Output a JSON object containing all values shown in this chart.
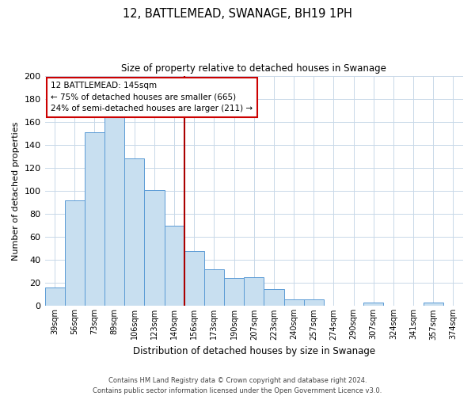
{
  "title": "12, BATTLEMEAD, SWANAGE, BH19 1PH",
  "subtitle": "Size of property relative to detached houses in Swanage",
  "xlabel": "Distribution of detached houses by size in Swanage",
  "ylabel": "Number of detached properties",
  "categories": [
    "39sqm",
    "56sqm",
    "73sqm",
    "89sqm",
    "106sqm",
    "123sqm",
    "140sqm",
    "156sqm",
    "173sqm",
    "190sqm",
    "207sqm",
    "223sqm",
    "240sqm",
    "257sqm",
    "274sqm",
    "290sqm",
    "307sqm",
    "324sqm",
    "341sqm",
    "357sqm",
    "374sqm"
  ],
  "values": [
    16,
    92,
    151,
    165,
    128,
    101,
    70,
    48,
    32,
    24,
    25,
    15,
    6,
    6,
    0,
    0,
    3,
    0,
    0,
    3,
    0
  ],
  "bar_color": "#c8dff0",
  "bar_edge_color": "#5b9bd5",
  "vline_color": "#aa0000",
  "annotation_title": "12 BATTLEMEAD: 145sqm",
  "annotation_line1": "← 75% of detached houses are smaller (665)",
  "annotation_line2": "24% of semi-detached houses are larger (211) →",
  "annotation_box_color": "#ffffff",
  "annotation_box_edge": "#cc0000",
  "ylim": [
    0,
    200
  ],
  "yticks": [
    0,
    20,
    40,
    60,
    80,
    100,
    120,
    140,
    160,
    180,
    200
  ],
  "footer_line1": "Contains HM Land Registry data © Crown copyright and database right 2024.",
  "footer_line2": "Contains public sector information licensed under the Open Government Licence v3.0.",
  "bg_color": "#ffffff",
  "grid_color": "#c8d8e8",
  "vline_index": 6.5
}
